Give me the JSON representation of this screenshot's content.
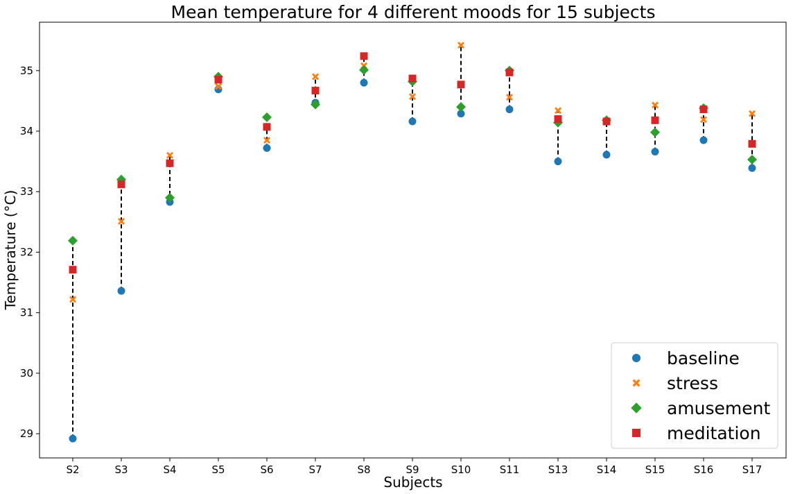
{
  "chart_data": {
    "type": "scatter",
    "title": "Mean temperature for 4 different moods for 15 subjects",
    "xlabel": "Subjects",
    "ylabel": "Temperature (°C)",
    "categories": [
      "S2",
      "S3",
      "S4",
      "S5",
      "S6",
      "S7",
      "S8",
      "S9",
      "S10",
      "S11",
      "S13",
      "S14",
      "S15",
      "S16",
      "S17"
    ],
    "ylim": [
      28.6,
      35.8
    ],
    "yticks": [
      29,
      30,
      31,
      32,
      33,
      34,
      35
    ],
    "grid": false,
    "legend_position": "bottom-right",
    "range_lines": "dashed vertical line from min to max per subject",
    "series": [
      {
        "name": "baseline",
        "marker": "circle",
        "color": "#1f77b4",
        "values": [
          28.92,
          31.36,
          32.83,
          34.69,
          33.72,
          34.47,
          34.8,
          34.16,
          34.29,
          34.36,
          33.5,
          33.61,
          33.66,
          33.85,
          33.39
        ]
      },
      {
        "name": "stress",
        "marker": "x",
        "color": "#ff7f0e",
        "values": [
          31.22,
          32.51,
          33.6,
          34.74,
          33.85,
          34.9,
          35.08,
          34.57,
          35.42,
          34.56,
          34.34,
          34.15,
          34.43,
          34.19,
          34.29
        ]
      },
      {
        "name": "amusement",
        "marker": "diamond",
        "color": "#2ca02c",
        "values": [
          32.19,
          33.2,
          32.9,
          34.9,
          34.23,
          34.44,
          35.01,
          34.82,
          34.4,
          35.0,
          34.14,
          34.18,
          33.98,
          34.38,
          33.53
        ]
      },
      {
        "name": "meditation",
        "marker": "square",
        "color": "#d62728",
        "values": [
          31.71,
          33.12,
          33.47,
          34.85,
          34.07,
          34.67,
          35.24,
          34.87,
          34.77,
          34.97,
          34.2,
          34.16,
          34.18,
          34.36,
          33.79
        ]
      }
    ]
  }
}
